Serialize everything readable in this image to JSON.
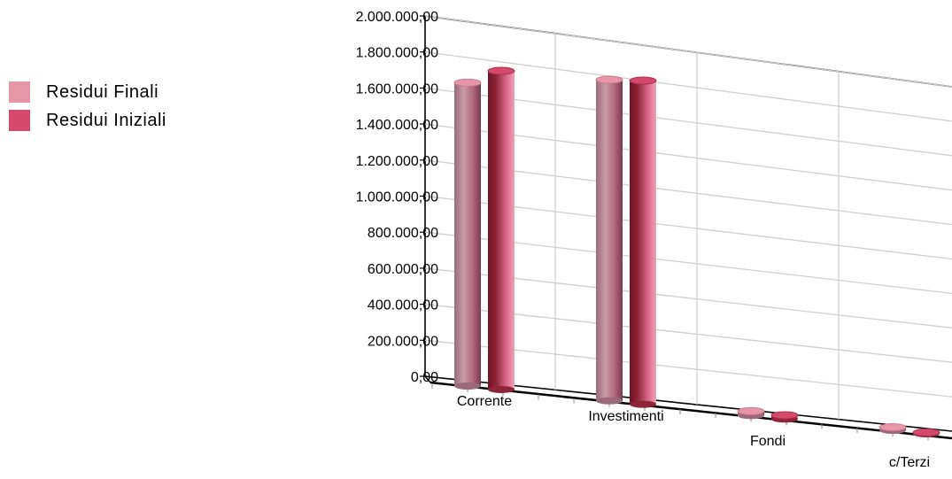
{
  "chart_data": {
    "type": "bar",
    "categories": [
      "Corrente",
      "Investimenti",
      "Fondi",
      "c/Terzi"
    ],
    "series": [
      {
        "name": "Residui Finali",
        "values": [
          1690000,
          1810000,
          25000,
          18000
        ],
        "color": "#e597a8"
      },
      {
        "name": "Residui Iniziali",
        "values": [
          1780000,
          1830000,
          22000,
          8000
        ],
        "color": "#d4496c"
      }
    ],
    "y_tick_labels": [
      "0,00",
      "200.000,00",
      "400.000,00",
      "600.000,00",
      "800.000,00",
      "1.000.000,00",
      "1.200.000,00",
      "1.400.000,00",
      "1.600.000,00",
      "1.800.000,00",
      "2.000.000,00"
    ],
    "ylim": [
      0,
      2000000
    ],
    "grid": true,
    "legend_position": "left",
    "title": "",
    "xlabel": "",
    "ylabel": ""
  }
}
